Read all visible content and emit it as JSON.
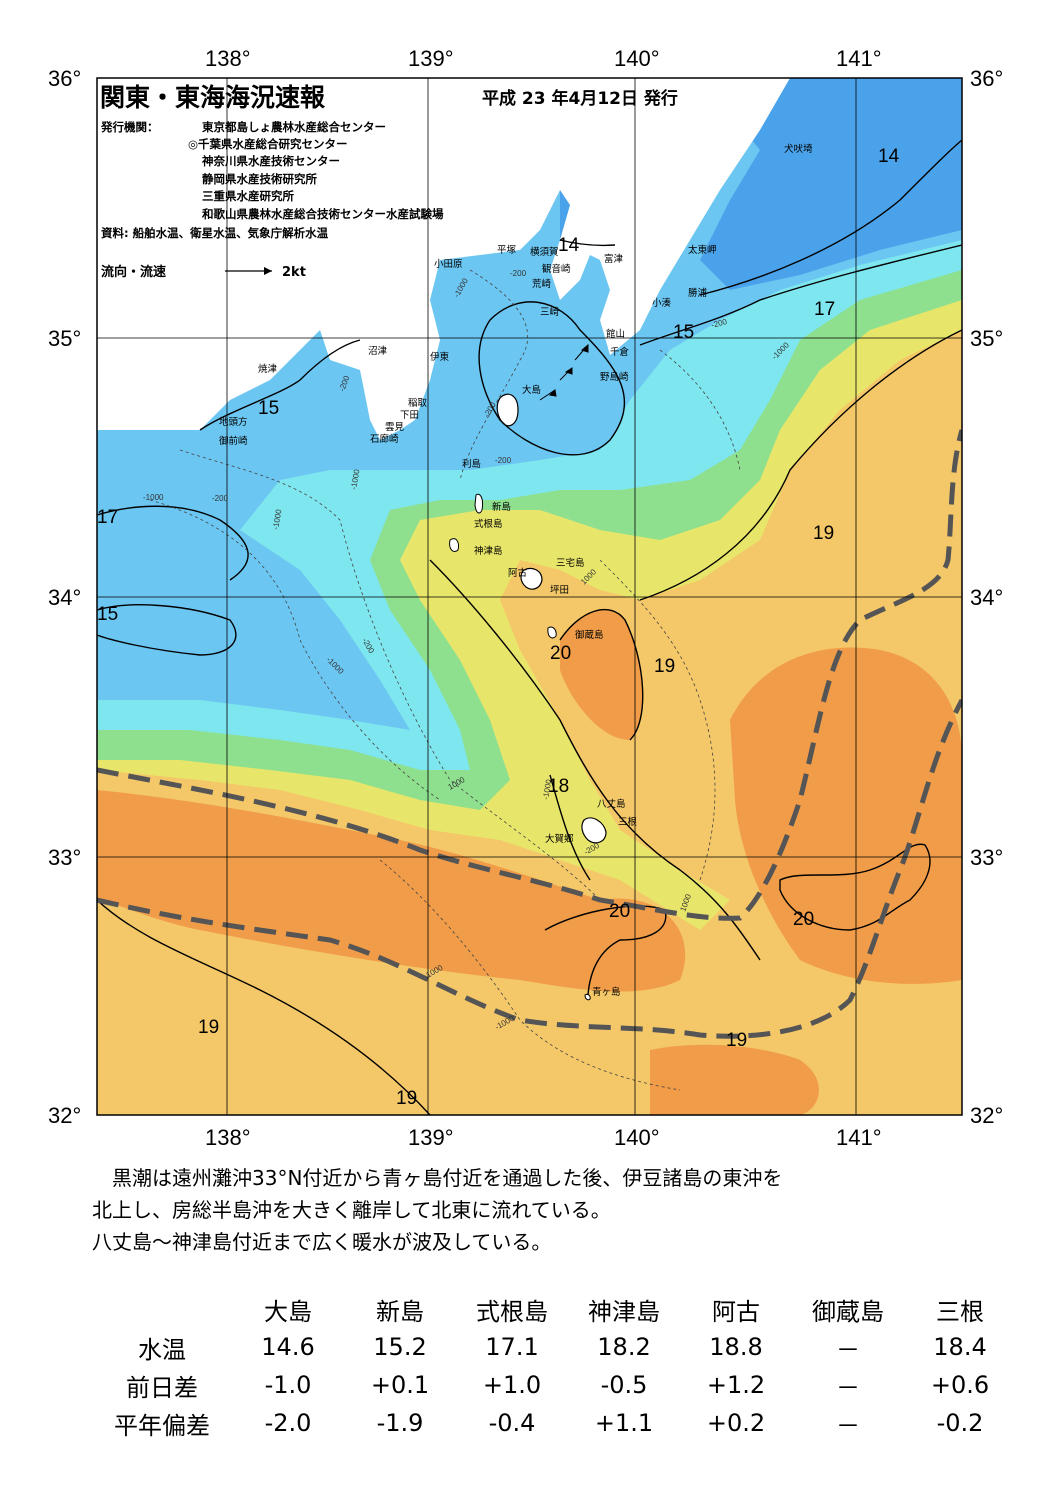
{
  "header": {
    "title": "関東・東海海況速報",
    "issue_date": "平成 23 年4月12日 発行",
    "issuer_label": "発行機関：",
    "issuers": [
      "東京都島しょ農林水産総合センター",
      "◎千葉県水産総合研究センター",
      "神奈川県水産技術センター",
      "静岡県水産技術研究所",
      "三重県水産研究所",
      "和歌山県農林水産総合技術センター水産試験場"
    ],
    "sources": "資料: 船舶水温、衛星水温、気象庁解析水温",
    "current_legend": "流向・流速",
    "current_scale": "2kt"
  },
  "axes": {
    "lon_ticks": [
      "138°",
      "139°",
      "140°",
      "141°"
    ],
    "lat_ticks": [
      "36°",
      "35°",
      "34°",
      "33°",
      "32°"
    ]
  },
  "places": {
    "inubosaki": "犬吠埼",
    "taitomisaki": "太東岬",
    "katsuura": "勝浦",
    "kominato": "小湊",
    "futtsu": "富津",
    "yokosuka": "横須賀",
    "kannonzaki": "観音崎",
    "arasaki": "荒崎",
    "misaki": "三崎",
    "hiratsuka": "平塚",
    "odawara": "小田原",
    "tateyama": "館山",
    "chikura": "千倉",
    "nojimazaki": "野島崎",
    "numazu": "沼津",
    "ito": "伊東",
    "inatori": "稲取",
    "shimoda": "下田",
    "mera": "雲見",
    "irozaki": "石廊崎",
    "yaizu": "焼津",
    "jitogata": "地頭方",
    "omaezaki": "御前崎",
    "oshima": "大島",
    "toshima": "利島",
    "niijima": "新島",
    "shikinejima": "式根島",
    "kozushima": "神津島",
    "ako": "阿古",
    "miyakejima": "三宅島",
    "tsubota": "坪田",
    "mikurajima": "御蔵島",
    "hachijojima": "八丈島",
    "mitsune": "三根",
    "okago": "大賀郷",
    "aogashima": "青ヶ島"
  },
  "isotherm_labels": {
    "t14a": "14",
    "t14b": "14",
    "t15a": "15",
    "t15b": "15",
    "t15c": "15",
    "t17a": "17",
    "t17b": "17",
    "t18": "18",
    "t19a": "19",
    "t19b": "19",
    "t19c": "19",
    "t19d": "19",
    "t19e": "19",
    "t20a": "20",
    "t20b": "20",
    "t20c": "20"
  },
  "depth_labels": {
    "d200": "-200",
    "d1000": "-1000",
    "p1000": "1000"
  },
  "summary": [
    "　黒潮は遠州灘沖33°N付近から青ヶ島付近を通過した後、伊豆諸島の東沖を",
    "北上し、房総半島沖を大きく離岸して北東に流れている。",
    "八丈島～神津島付近まで広く暖水が波及している。"
  ],
  "table": {
    "columns": [
      "大島",
      "新島",
      "式根島",
      "神津島",
      "阿古",
      "御蔵島",
      "三根"
    ],
    "rows": [
      {
        "label": "水温",
        "values": [
          "14.6",
          "15.2",
          "17.1",
          "18.2",
          "18.8",
          "－",
          "18.4"
        ]
      },
      {
        "label": "前日差",
        "values": [
          "-1.0",
          "+0.1",
          "+1.0",
          "-0.5",
          "+1.2",
          "－",
          "+0.6"
        ]
      },
      {
        "label": "平年偏差",
        "values": [
          "-2.0",
          "-1.9",
          "-0.4",
          "+1.1",
          "+0.2",
          "－",
          "-0.2"
        ]
      }
    ]
  },
  "colors": {
    "t14": "#4aa3ea",
    "t15": "#6cc6f2",
    "t16": "#7ee6ee",
    "t17": "#8ee08e",
    "t18": "#e8e66a",
    "t19": "#f4c868",
    "t20": "#f09c48",
    "land": "#ffffff",
    "kuroshio": "#555555"
  }
}
